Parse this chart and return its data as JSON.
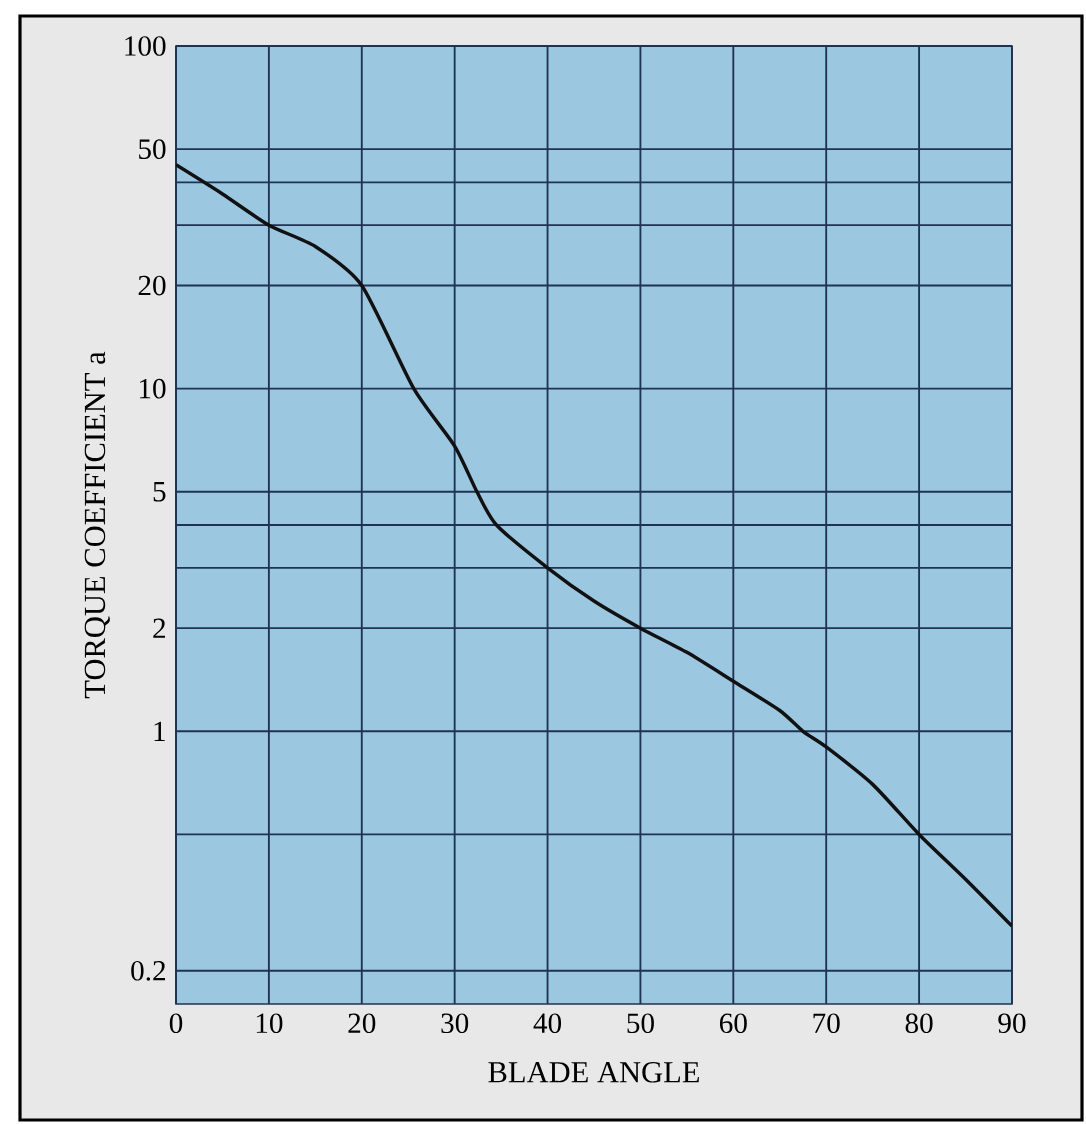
{
  "chart_data": {
    "type": "line",
    "xlabel": "BLADE ANGLE",
    "ylabel": "TORQUE COEFFICIENT a",
    "x": [
      0,
      5,
      10,
      15,
      20,
      25.6,
      30,
      32.4,
      34.5,
      40,
      45,
      50,
      55,
      60,
      65,
      67.5,
      70,
      75,
      80,
      85,
      90
    ],
    "series": [
      {
        "color": "#111111",
        "values": [
          45,
          37,
          30,
          26,
          20,
          10,
          6.8,
          5,
          4,
          3,
          2.4,
          2,
          1.7,
          1.4,
          1.15,
          1,
          0.9,
          0.7,
          0.5,
          0.37,
          0.27
        ]
      }
    ],
    "xlim": [
      0,
      90
    ],
    "xticks": [
      0,
      10,
      20,
      30,
      40,
      50,
      60,
      70,
      80,
      90
    ],
    "ylim": [
      0.16,
      100
    ],
    "yticks": [
      {
        "value": 0.2,
        "label": "0.2"
      },
      {
        "value": 0.5,
        "label": null
      },
      1,
      2,
      {
        "value": 3,
        "label": null
      },
      {
        "value": 4,
        "label": null
      },
      5,
      10,
      20,
      {
        "value": 30,
        "label": null
      },
      {
        "value": 40,
        "label": null
      },
      50,
      100
    ],
    "log": "y",
    "grid": true,
    "marker": "none",
    "line_style": "solid"
  }
}
